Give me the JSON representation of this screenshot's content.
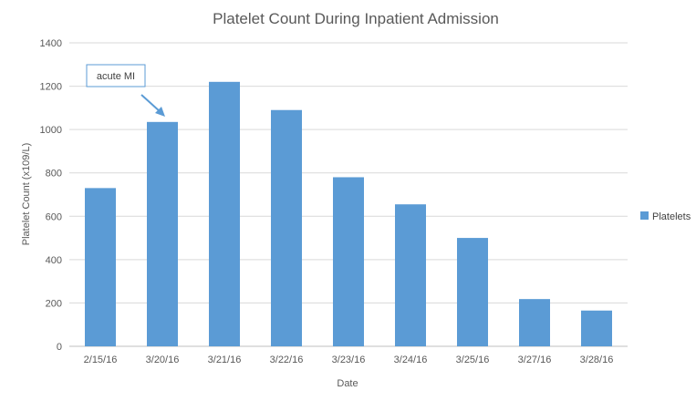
{
  "chart_data": {
    "type": "bar",
    "title": "Platelet Count During Inpatient Admission",
    "xlabel": "Date",
    "ylabel": "Platelet Count (x109/L)",
    "categories": [
      "2/15/16",
      "3/20/16",
      "3/21/16",
      "3/22/16",
      "3/23/16",
      "3/24/16",
      "3/25/16",
      "3/27/16",
      "3/28/16"
    ],
    "series": [
      {
        "name": "Platelets",
        "values": [
          730,
          1035,
          1220,
          1090,
          780,
          655,
          500,
          218,
          165
        ]
      }
    ],
    "ylim": [
      0,
      1400
    ],
    "yticks": [
      0,
      200,
      400,
      600,
      800,
      1000,
      1200,
      1400
    ],
    "grid": true,
    "legend": "right",
    "annotations": [
      {
        "text": "acute MI",
        "category": "3/20/16"
      }
    ],
    "colors": {
      "bar": "#5b9bd5",
      "grid": "#d9d9d9",
      "annotation_border": "#5b9bd5"
    }
  }
}
